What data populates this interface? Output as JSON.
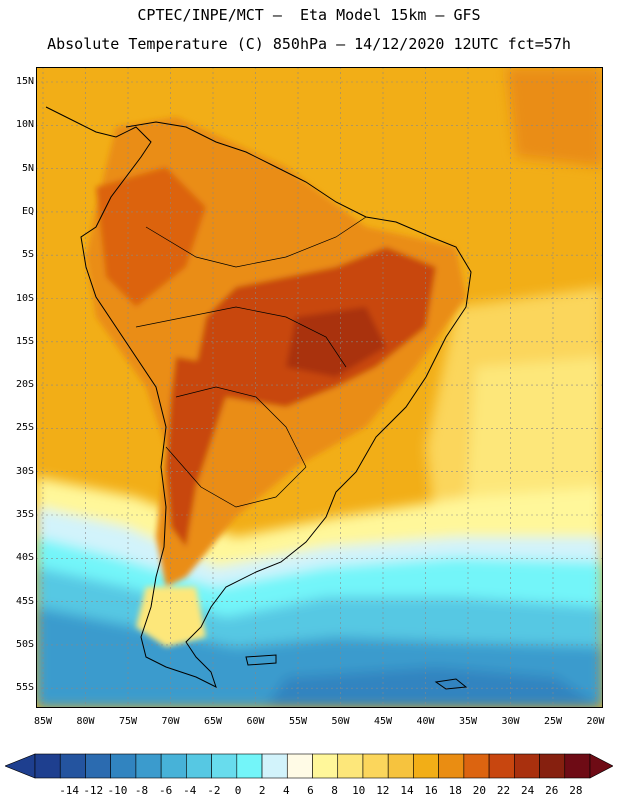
{
  "header": {
    "line1": "CPTEC/INPE/MCT –  Eta Model 15km – GFS",
    "line2": "Absolute Temperature (C) 850hPa – 14/12/2020 12UTC fct=57h"
  },
  "map": {
    "variable": "temperature-850hPa",
    "lat_labels": [
      "15N",
      "10N",
      "5N",
      "EQ",
      "5S",
      "10S",
      "15S",
      "20S",
      "25S",
      "30S",
      "35S",
      "40S",
      "45S",
      "50S",
      "55S"
    ],
    "lon_labels": [
      "85W",
      "80W",
      "75W",
      "70W",
      "65W",
      "60W",
      "55W",
      "50W",
      "45W",
      "40W",
      "35W",
      "30W",
      "25W",
      "20W"
    ]
  },
  "legend": {
    "labels": [
      "-14",
      "-12",
      "-10",
      "-8",
      "-6",
      "-4",
      "-2",
      "0",
      "2",
      "4",
      "6",
      "8",
      "10",
      "12",
      "14",
      "16",
      "18",
      "20",
      "22",
      "24",
      "26",
      "28"
    ],
    "colors": [
      "#1e3f8f",
      "#24549f",
      "#2b6bb0",
      "#3184c0",
      "#3b9bcd",
      "#47b2d8",
      "#56c8e3",
      "#68dced",
      "#73f5f9",
      "#d2f3fb",
      "#fffbe6",
      "#fff79a",
      "#fde77a",
      "#fbd65c",
      "#f6c33e",
      "#f2ae17",
      "#ea8d12",
      "#dc6410",
      "#c8460f",
      "#a9300e",
      "#86200f",
      "#6e0b15"
    ]
  }
}
